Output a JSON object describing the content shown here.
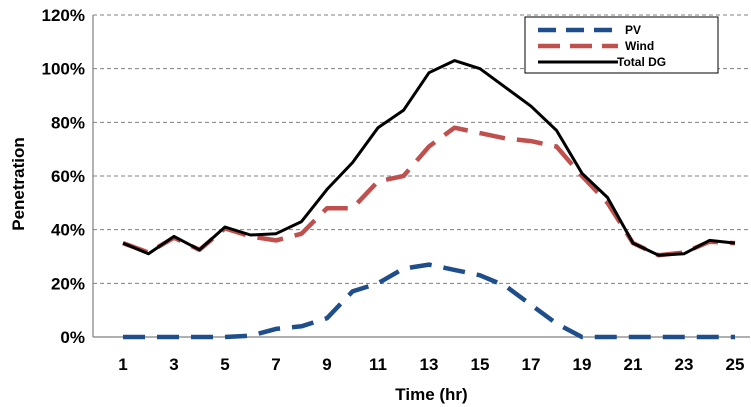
{
  "chart_data": {
    "type": "line",
    "title": "",
    "xlabel": "Time (hr)",
    "ylabel": "Penetration",
    "xlim": [
      1,
      25
    ],
    "ylim": [
      0,
      120
    ],
    "x": [
      1,
      2,
      3,
      4,
      5,
      6,
      7,
      8,
      9,
      10,
      11,
      12,
      13,
      14,
      15,
      16,
      17,
      18,
      19,
      20,
      21,
      22,
      23,
      24,
      25
    ],
    "x_ticks": [
      "1",
      "3",
      "5",
      "7",
      "9",
      "11",
      "13",
      "15",
      "17",
      "19",
      "21",
      "23",
      "25"
    ],
    "y_ticks": [
      "0%",
      "20%",
      "40%",
      "60%",
      "80%",
      "100%",
      "120%"
    ],
    "grid": true,
    "legend_position": "top-right",
    "series": [
      {
        "name": "PV",
        "color": "#1f4e8c",
        "style": "dashed",
        "values": [
          0,
          0,
          0,
          0,
          0,
          0.5,
          3,
          4,
          7,
          17,
          20,
          25.5,
          27,
          25,
          23,
          19,
          12,
          5,
          0,
          0,
          0,
          0,
          0,
          0,
          0
        ]
      },
      {
        "name": "Wind",
        "color": "#c0504d",
        "style": "dashed",
        "values": [
          35,
          31.5,
          37,
          32.5,
          40.5,
          37.5,
          36,
          38.5,
          48,
          48,
          58,
          60,
          71,
          78,
          76,
          74,
          73,
          71,
          60,
          50,
          35,
          30.5,
          31.5,
          35.5,
          35
        ]
      },
      {
        "name": "Total DG",
        "color": "#000000",
        "style": "solid",
        "values": [
          35,
          31,
          37.5,
          32.5,
          41,
          38,
          38.5,
          43,
          55,
          65,
          78,
          84.5,
          98.5,
          103,
          100,
          93,
          86,
          77,
          61,
          52,
          35,
          30.5,
          31,
          36,
          35
        ]
      }
    ]
  }
}
